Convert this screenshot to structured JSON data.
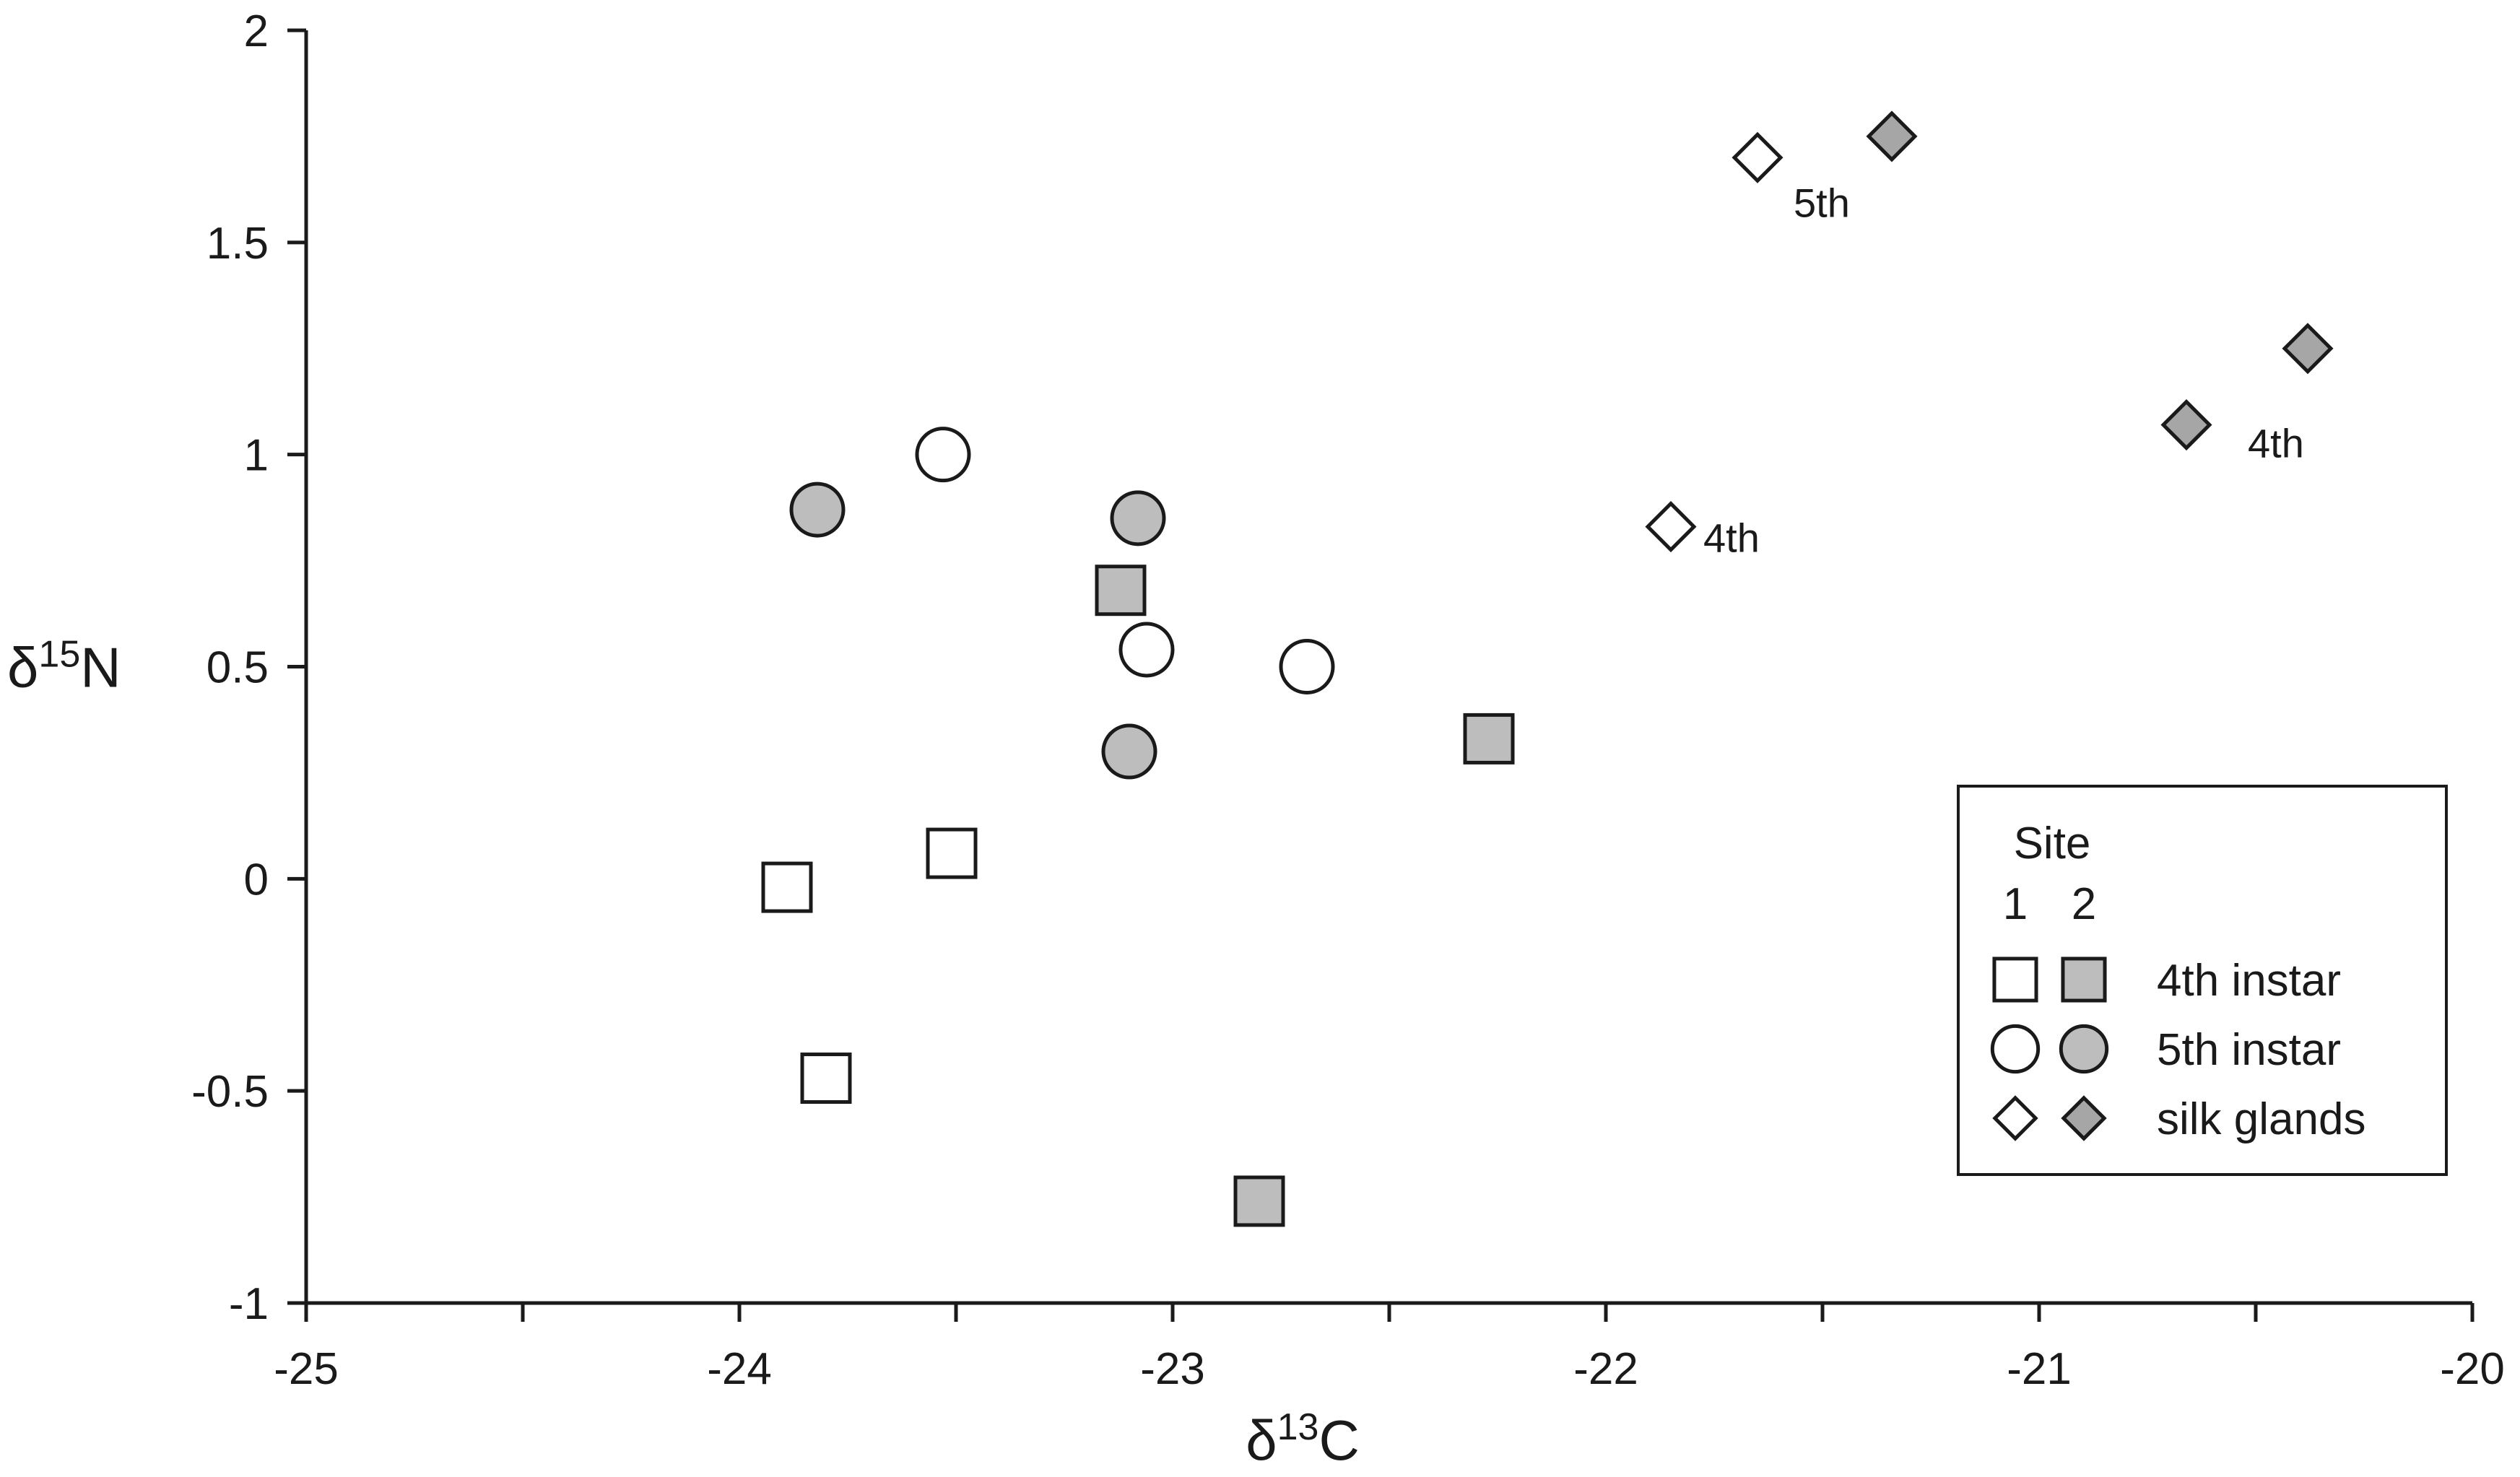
{
  "chart_data": {
    "type": "scatter",
    "xlabel": "δ13C",
    "ylabel": "δ15N",
    "xlim": [
      -25,
      -20
    ],
    "ylim": [
      -1,
      2
    ],
    "x_major_ticks": [
      -25,
      -24,
      -23,
      -22,
      -21,
      -20
    ],
    "x_minor_step": 0.5,
    "y_ticks": [
      -1,
      -0.5,
      0,
      0.5,
      1,
      1.5,
      2
    ],
    "y_tick_labels": [
      "-1",
      "-0.5",
      "0",
      "0.5",
      "1",
      "1.5",
      "2"
    ],
    "x_tick_labels": [
      "-25",
      "-24",
      "-23",
      "-22",
      "-21",
      "-20"
    ],
    "grid": false,
    "series": [
      {
        "name": "4th instar site 1",
        "marker": "square",
        "fill": "#ffffff",
        "points": [
          {
            "x": -23.89,
            "y": -0.02
          },
          {
            "x": -23.51,
            "y": 0.06
          },
          {
            "x": -23.8,
            "y": -0.47
          }
        ]
      },
      {
        "name": "4th instar site 2",
        "marker": "square",
        "fill": "#bdbdbd",
        "points": [
          {
            "x": -23.12,
            "y": 0.68
          },
          {
            "x": -22.27,
            "y": 0.33
          },
          {
            "x": -22.8,
            "y": -0.76
          }
        ]
      },
      {
        "name": "5th instar site 1",
        "marker": "circle",
        "fill": "#ffffff",
        "points": [
          {
            "x": -23.53,
            "y": 1.0
          },
          {
            "x": -23.06,
            "y": 0.54
          },
          {
            "x": -22.69,
            "y": 0.5
          }
        ]
      },
      {
        "name": "5th instar site 2",
        "marker": "circle",
        "fill": "#bdbdbd",
        "points": [
          {
            "x": -23.82,
            "y": 0.87
          },
          {
            "x": -23.08,
            "y": 0.85
          },
          {
            "x": -23.1,
            "y": 0.3
          }
        ]
      },
      {
        "name": "silk glands site 1",
        "marker": "diamond",
        "fill": "#ffffff",
        "points": [
          {
            "x": -21.65,
            "y": 1.7,
            "label": "5th"
          },
          {
            "x": -21.85,
            "y": 0.83,
            "label": "4th"
          }
        ]
      },
      {
        "name": "silk glands site 2",
        "marker": "diamond",
        "fill": "#a6a6a6",
        "points": [
          {
            "x": -21.34,
            "y": 1.75
          },
          {
            "x": -20.38,
            "y": 1.25
          },
          {
            "x": -20.66,
            "y": 1.07,
            "label": "4th"
          }
        ]
      }
    ],
    "legend": {
      "position": "bottom-right",
      "title": "Site",
      "columns": [
        "1",
        "2"
      ],
      "rows": [
        {
          "label": "4th instar",
          "marker": "square"
        },
        {
          "label": "5th instar",
          "marker": "circle"
        },
        {
          "label": "silk glands",
          "marker": "diamond"
        }
      ]
    },
    "colors": {
      "open": "#ffffff",
      "filled_grey": "#bdbdbd",
      "filled_dark": "#a6a6a6",
      "stroke": "#1a1a1a"
    }
  }
}
